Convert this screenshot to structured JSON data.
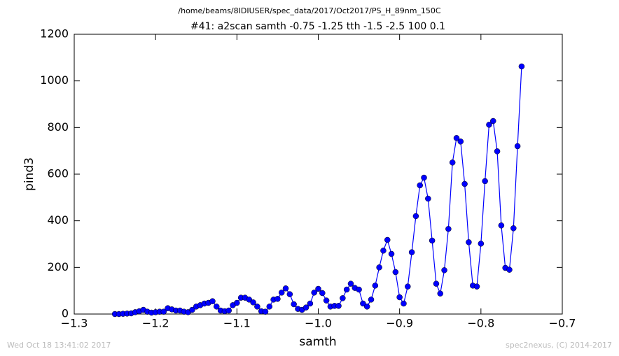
{
  "chart_data": {
    "type": "line",
    "header": "/home/beams/8IDIUSER/spec_data/2017/Oct2017/PS_H_89nm_150C",
    "title": "#41: a2scan  samth -0.75 -1.25  tth -1.5 -2.5  100 0.1",
    "x_label": "samth",
    "y_label": "pind3",
    "footer_left": "Wed Oct 18 13:41:02 2017",
    "footer_right": "spec2nexus, (C) 2014-2017",
    "color": "#0000ff",
    "marker": "circle",
    "x": [
      -1.25,
      -1.245,
      -1.24,
      -1.235,
      -1.23,
      -1.225,
      -1.22,
      -1.215,
      -1.21,
      -1.205,
      -1.2,
      -1.195,
      -1.19,
      -1.185,
      -1.18,
      -1.175,
      -1.17,
      -1.165,
      -1.16,
      -1.155,
      -1.15,
      -1.145,
      -1.14,
      -1.135,
      -1.13,
      -1.125,
      -1.12,
      -1.115,
      -1.11,
      -1.105,
      -1.1,
      -1.095,
      -1.09,
      -1.085,
      -1.08,
      -1.075,
      -1.07,
      -1.065,
      -1.06,
      -1.055,
      -1.05,
      -1.045,
      -1.04,
      -1.035,
      -1.03,
      -1.025,
      -1.02,
      -1.015,
      -1.01,
      -1.005,
      -1.0,
      -0.995,
      -0.99,
      -0.985,
      -0.98,
      -0.975,
      -0.97,
      -0.965,
      -0.96,
      -0.955,
      -0.95,
      -0.945,
      -0.94,
      -0.935,
      -0.93,
      -0.925,
      -0.92,
      -0.915,
      -0.91,
      -0.905,
      -0.9,
      -0.895,
      -0.89,
      -0.885,
      -0.88,
      -0.875,
      -0.87,
      -0.865,
      -0.86,
      -0.855,
      -0.85,
      -0.845,
      -0.84,
      -0.835,
      -0.83,
      -0.825,
      -0.82,
      -0.815,
      -0.81,
      -0.805,
      -0.8,
      -0.795,
      -0.79,
      -0.785,
      -0.78,
      -0.775,
      -0.77,
      -0.765,
      -0.76,
      -0.755,
      -0.75
    ],
    "values": [
      0,
      0,
      1,
      2,
      3,
      8,
      12,
      18,
      10,
      6,
      8,
      10,
      10,
      25,
      20,
      15,
      15,
      10,
      8,
      18,
      32,
      38,
      45,
      48,
      55,
      32,
      15,
      12,
      15,
      38,
      48,
      70,
      70,
      62,
      50,
      32,
      12,
      10,
      32,
      62,
      65,
      92,
      110,
      85,
      42,
      22,
      18,
      28,
      45,
      92,
      108,
      90,
      58,
      32,
      35,
      35,
      68,
      105,
      130,
      112,
      105,
      45,
      32,
      62,
      122,
      200,
      272,
      318,
      258,
      180,
      72,
      45,
      118,
      265,
      420,
      552,
      585,
      495,
      315,
      130,
      88,
      188,
      365,
      650,
      755,
      740,
      558,
      308,
      122,
      118,
      302,
      570,
      812,
      828,
      698,
      380,
      198,
      190,
      368,
      720,
      1062
    ],
    "xlim": [
      -1.3,
      -0.7
    ],
    "xticks": [
      {
        "value": -1.3,
        "label": "−1.3"
      },
      {
        "value": -1.2,
        "label": "−1.2"
      },
      {
        "value": -1.1,
        "label": "−1.1"
      },
      {
        "value": -1.0,
        "label": "−1.0"
      },
      {
        "value": -0.9,
        "label": "−0.9"
      },
      {
        "value": -0.8,
        "label": "−0.8"
      },
      {
        "value": -0.7,
        "label": "−0.7"
      }
    ],
    "ylim": [
      0,
      1200
    ],
    "yticks": [
      0,
      200,
      400,
      600,
      800,
      1000,
      1200
    ],
    "grid": false
  }
}
